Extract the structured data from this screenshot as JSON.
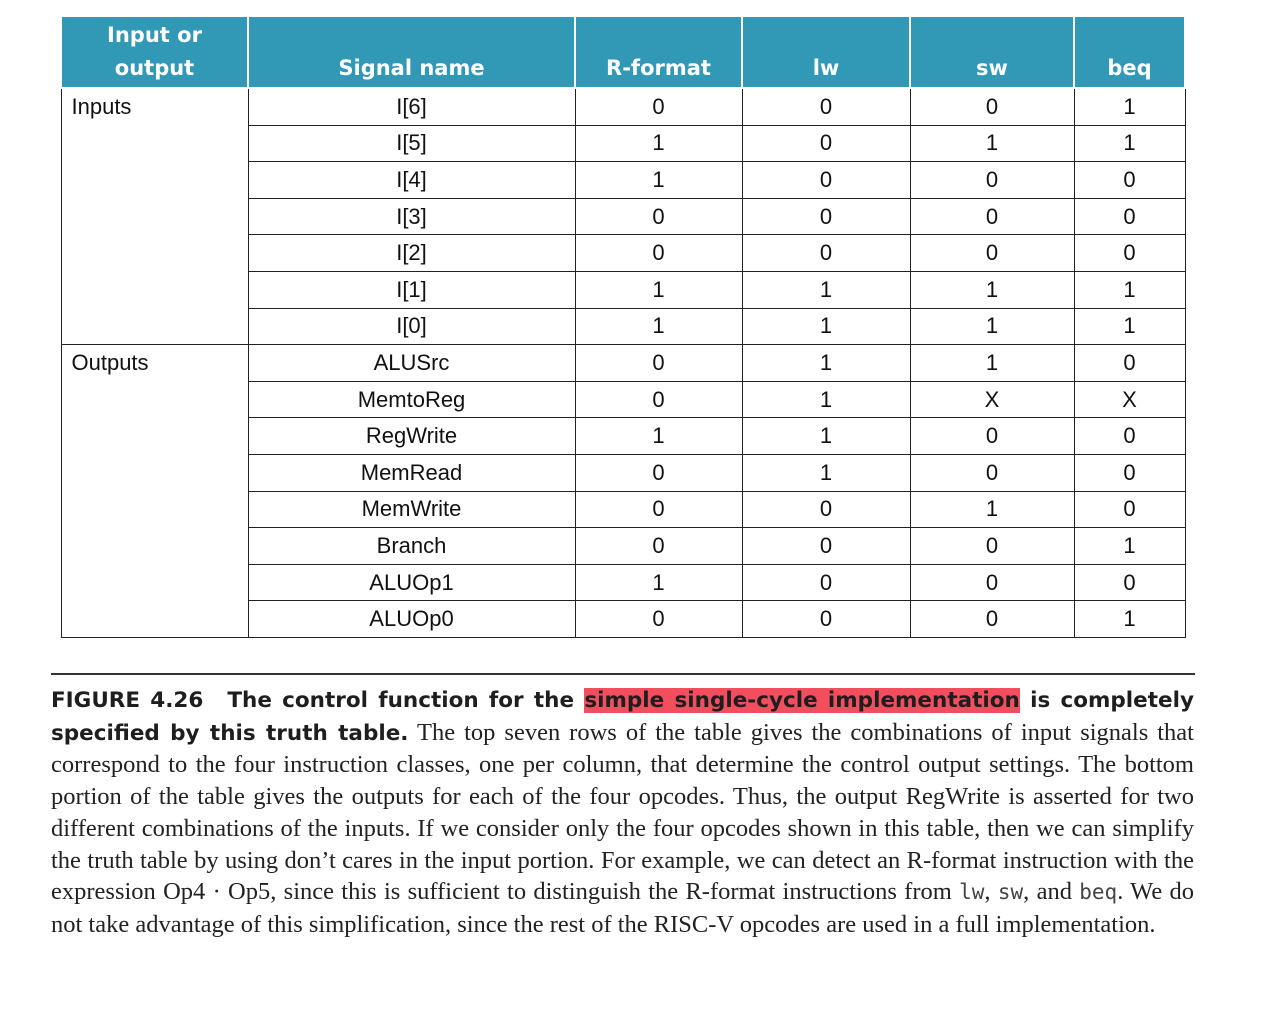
{
  "table": {
    "headers": [
      "Input or output",
      "Signal name",
      "R-format",
      "lw",
      "sw",
      "beq"
    ],
    "groups": [
      {
        "label": "Inputs",
        "rows": [
          {
            "signal": "I[6]",
            "values": [
              "0",
              "0",
              "0",
              "1"
            ]
          },
          {
            "signal": "I[5]",
            "values": [
              "1",
              "0",
              "1",
              "1"
            ]
          },
          {
            "signal": "I[4]",
            "values": [
              "1",
              "0",
              "0",
              "0"
            ]
          },
          {
            "signal": "I[3]",
            "values": [
              "0",
              "0",
              "0",
              "0"
            ]
          },
          {
            "signal": "I[2]",
            "values": [
              "0",
              "0",
              "0",
              "0"
            ]
          },
          {
            "signal": "I[1]",
            "values": [
              "1",
              "1",
              "1",
              "1"
            ]
          },
          {
            "signal": "I[0]",
            "values": [
              "1",
              "1",
              "1",
              "1"
            ]
          }
        ]
      },
      {
        "label": "Outputs",
        "rows": [
          {
            "signal": "ALUSrc",
            "values": [
              "0",
              "1",
              "1",
              "0"
            ]
          },
          {
            "signal": "MemtoReg",
            "values": [
              "0",
              "1",
              "X",
              "X"
            ]
          },
          {
            "signal": "RegWrite",
            "values": [
              "1",
              "1",
              "0",
              "0"
            ]
          },
          {
            "signal": "MemRead",
            "values": [
              "0",
              "1",
              "0",
              "0"
            ]
          },
          {
            "signal": "MemWrite",
            "values": [
              "0",
              "0",
              "1",
              "0"
            ]
          },
          {
            "signal": "Branch",
            "values": [
              "0",
              "0",
              "0",
              "1"
            ]
          },
          {
            "signal": "ALUOp1",
            "values": [
              "1",
              "0",
              "0",
              "0"
            ]
          },
          {
            "signal": "ALUOp0",
            "values": [
              "0",
              "0",
              "0",
              "1"
            ]
          }
        ]
      }
    ]
  },
  "caption": {
    "figure_number": "FIGURE 4.26",
    "title_before": "The control function for the ",
    "title_highlight": "simple single-cycle implementation",
    "title_after": " is completely specified by this truth table.",
    "body_1": " The top seven rows of the table gives the combinations of input signals that correspond to the four instruction classes, one per column, that determine the control output settings. The bottom portion of the table gives the outputs for each of the four opcodes. Thus, the output RegWrite is asserted for two different combinations of the inputs. If we consider only the four opcodes shown in this table, then we can simplify the truth table by using don’t cares in the input portion. For example, we can detect an R-format instruction with the expression Op4 · Op5, since this is sufficient to distinguish the R-format instructions from ",
    "code_lw": "lw",
    "sep_1": ", ",
    "code_sw": "sw",
    "sep_2": ", and ",
    "code_beq": "beq",
    "body_2": ". We do not take advantage of this simplification, since the rest of the RISC-V opcodes are used in a full implementation.",
    "highlight_color": "#f24e5e"
  },
  "colors": {
    "header_bg": "#3198b5",
    "header_text": "#ffffff"
  }
}
